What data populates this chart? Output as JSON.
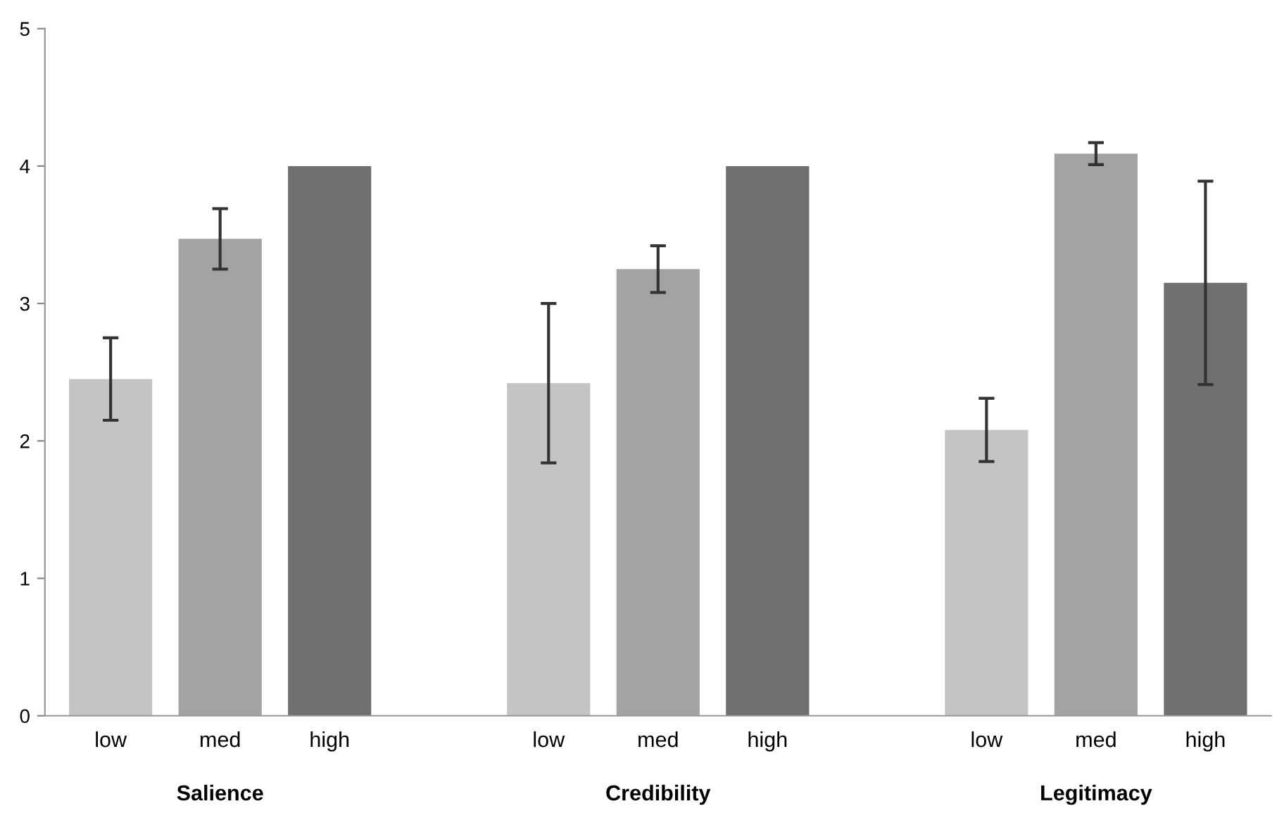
{
  "chart_data": {
    "type": "bar",
    "categories": [
      "Salience",
      "Credibility",
      "Legitimacy"
    ],
    "series": [
      {
        "name": "low",
        "color": "#c4c4c4",
        "values": [
          2.45,
          2.42,
          2.08
        ],
        "errors": [
          0.3,
          0.58,
          0.23
        ]
      },
      {
        "name": "med",
        "color": "#a3a3a3",
        "values": [
          3.47,
          3.25,
          4.09
        ],
        "errors": [
          0.22,
          0.17,
          0.08
        ]
      },
      {
        "name": "high",
        "color": "#707070",
        "values": [
          4.0,
          4.0,
          3.15
        ],
        "errors": [
          null,
          null,
          0.74
        ]
      }
    ],
    "ylim": [
      0,
      5
    ],
    "yticks": [
      0,
      1,
      2,
      3,
      4,
      5
    ],
    "grid": false,
    "legend": false
  }
}
